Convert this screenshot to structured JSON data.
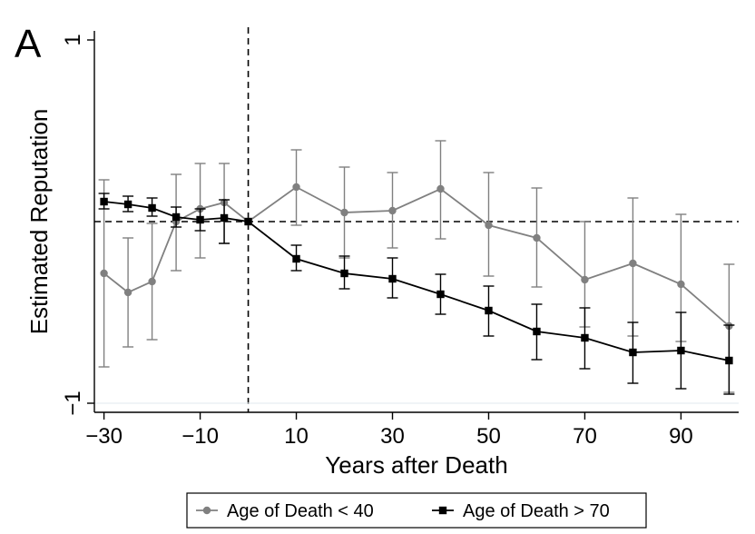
{
  "chart_data": {
    "type": "line",
    "panel_label": "A",
    "title": "",
    "xlabel": "Years after Death",
    "ylabel": "Estimated Reputation",
    "xlim": [
      -32,
      102
    ],
    "ylim": [
      -1.05,
      1.05
    ],
    "x_ticks": [
      -30,
      -10,
      10,
      30,
      50,
      70,
      90
    ],
    "x_tick_labels": [
      "−30",
      "−10",
      "10",
      "30",
      "50",
      "70",
      "90"
    ],
    "y_ticks": [
      1,
      -1
    ],
    "y_tick_labels": [
      "1",
      "−1"
    ],
    "reference_lines": {
      "vertical_x": 0,
      "horizontal_y": 0
    },
    "grid": false,
    "legend_position": "bottom",
    "series": [
      {
        "name": "Age of Death < 40",
        "color": "#808080",
        "marker": "circle",
        "x": [
          -30,
          -25,
          -20,
          -15,
          -10,
          -5,
          0,
          10,
          20,
          30,
          40,
          50,
          60,
          70,
          80,
          90,
          100
        ],
        "y": [
          -0.285,
          -0.39,
          -0.33,
          0.0,
          0.07,
          0.105,
          0.0,
          0.19,
          0.05,
          0.06,
          0.18,
          -0.02,
          -0.09,
          -0.32,
          -0.23,
          -0.345,
          -0.575
        ],
        "ci_low": [
          -0.8,
          -0.69,
          -0.65,
          -0.27,
          -0.2,
          -0.12,
          0.0,
          -0.02,
          -0.2,
          -0.145,
          -0.095,
          -0.3,
          -0.36,
          -0.58,
          -0.63,
          -0.66,
          -0.94
        ],
        "ci_high": [
          0.23,
          -0.09,
          -0.01,
          0.26,
          0.32,
          0.32,
          0.0,
          0.395,
          0.3,
          0.27,
          0.445,
          0.27,
          0.185,
          0.0,
          0.13,
          0.04,
          -0.235
        ]
      },
      {
        "name": "Age of Death > 70",
        "color": "#000000",
        "marker": "square",
        "x": [
          -30,
          -25,
          -20,
          -15,
          -10,
          -5,
          0,
          10,
          20,
          30,
          40,
          50,
          60,
          70,
          80,
          90,
          100
        ],
        "y": [
          0.11,
          0.095,
          0.075,
          0.025,
          0.01,
          0.02,
          0.0,
          -0.205,
          -0.285,
          -0.315,
          -0.4,
          -0.49,
          -0.605,
          -0.64,
          -0.72,
          -0.71,
          -0.765
        ],
        "ci_low": [
          0.07,
          0.055,
          0.03,
          -0.03,
          -0.05,
          -0.12,
          0.0,
          -0.27,
          -0.37,
          -0.42,
          -0.51,
          -0.63,
          -0.76,
          -0.81,
          -0.89,
          -0.92,
          -0.95
        ],
        "ci_high": [
          0.155,
          0.14,
          0.13,
          0.08,
          0.07,
          0.12,
          0.0,
          -0.13,
          -0.19,
          -0.2,
          -0.29,
          -0.355,
          -0.455,
          -0.475,
          -0.555,
          -0.5,
          -0.57
        ]
      }
    ]
  }
}
